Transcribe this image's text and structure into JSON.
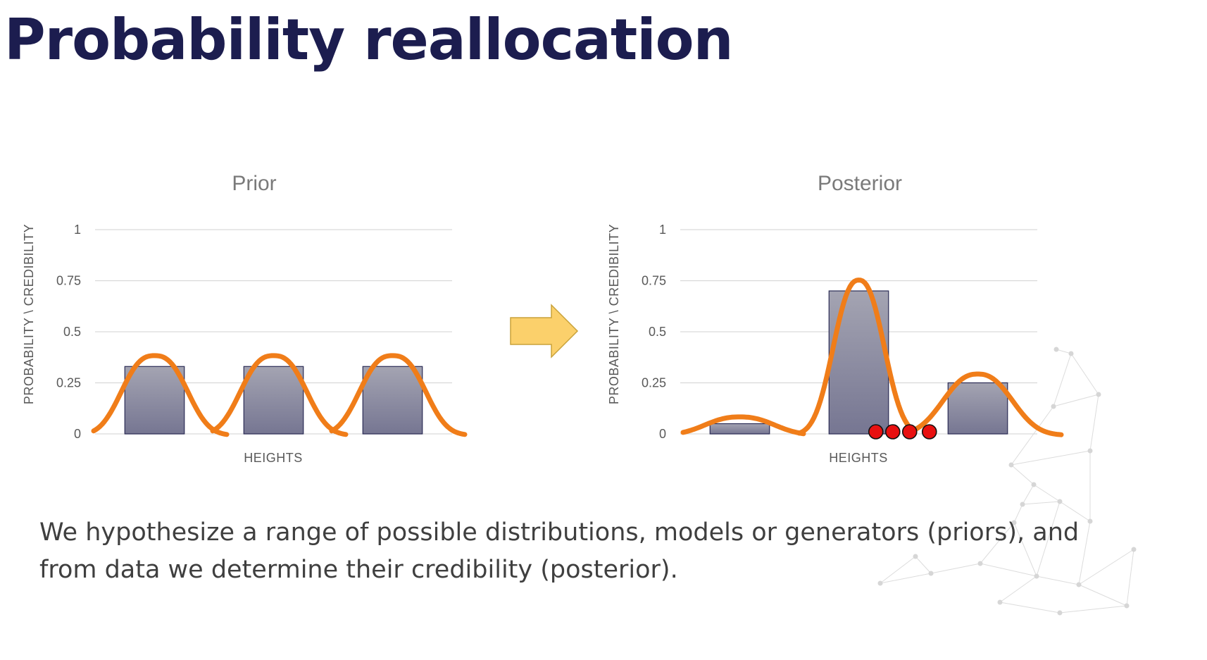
{
  "title": "Probability reallocation",
  "caption": "We hypothesize a range of possible distributions, models or generators (priors), and from data we determine their credibility (posterior).",
  "colors": {
    "title": "#1c1d4f",
    "bar_top": "#a4a4b2",
    "bar_bottom": "#767692",
    "bar_stroke": "#2b2c55",
    "curve": "#f07d19",
    "observation": "#e81010",
    "arrow_fill": "#fbd06b",
    "arrow_stroke": "#c9a23a",
    "grid": "#d9d9d9"
  },
  "icons": {
    "arrow": "right-arrow-icon"
  },
  "chart_data": [
    {
      "type": "bar",
      "title": "Prior",
      "xlabel": "HEIGHTS",
      "ylabel": "PROBABILITY \\ CREDIBILITY",
      "ylim": [
        0,
        1
      ],
      "yticks": [
        "0",
        "0.25",
        "0.5",
        "0.75",
        "1"
      ],
      "categories": [
        "",
        "",
        ""
      ],
      "values": [
        0.33,
        0.33,
        0.33
      ],
      "grid": true,
      "legend": "none",
      "annotations": {
        "curve_peaks": [
          0.39,
          0.39,
          0.39
        ]
      }
    },
    {
      "type": "bar",
      "title": "Posterior",
      "xlabel": "HEIGHTS",
      "ylabel": "PROBABILITY \\ CREDIBILITY",
      "ylim": [
        0,
        1
      ],
      "yticks": [
        "0",
        "0.25",
        "0.5",
        "0.75",
        "1"
      ],
      "categories": [
        "",
        "",
        ""
      ],
      "values": [
        0.05,
        0.7,
        0.25
      ],
      "grid": true,
      "legend": "none",
      "annotations": {
        "curve_peaks": [
          0.09,
          0.76,
          0.3
        ],
        "observations": 4
      }
    }
  ]
}
